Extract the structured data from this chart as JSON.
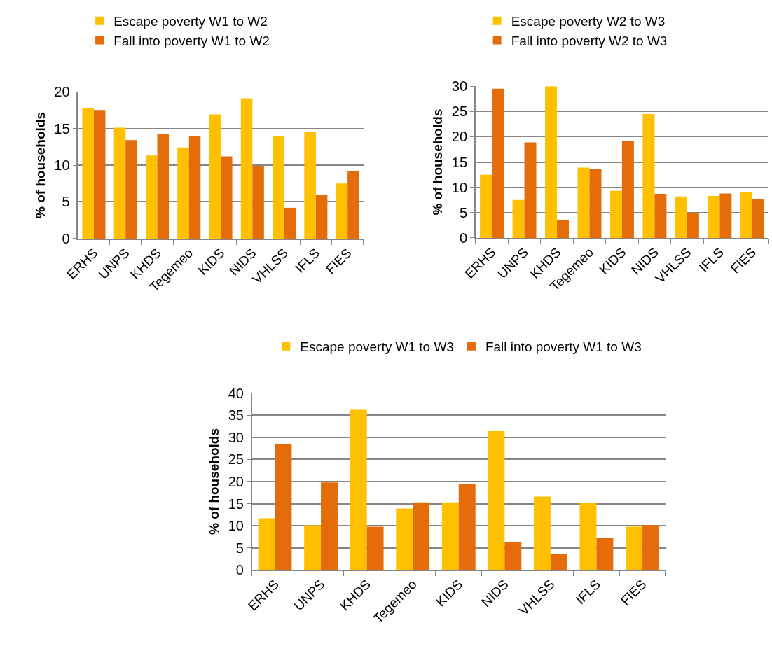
{
  "chart_data": [
    {
      "type": "bar",
      "ylabel": "% of households",
      "categories": [
        "ERHS",
        "UNPS",
        "KHDS",
        "Tegemeo",
        "KIDS",
        "NIDS",
        "VHLSS",
        "IFLS",
        "FIES"
      ],
      "ylim": [
        0,
        20
      ],
      "yticks": [
        0,
        5,
        10,
        15,
        20
      ],
      "grid": "y",
      "legend": "top left",
      "series": [
        {
          "name": "Escape poverty W1 to W2",
          "color": "#ffc000",
          "values": [
            17.8,
            15.1,
            11.3,
            12.4,
            16.9,
            19.1,
            13.9,
            14.5,
            7.5
          ]
        },
        {
          "name": "Fall into poverty W1 to W2",
          "color": "#e46c0a",
          "values": [
            17.5,
            13.4,
            14.2,
            14.0,
            11.2,
            9.9,
            4.2,
            6.0,
            9.2
          ]
        }
      ]
    },
    {
      "type": "bar",
      "ylabel": "% of households",
      "categories": [
        "ERHS",
        "UNPS",
        "KHDS",
        "Tegemeo",
        "KIDS",
        "NIDS",
        "VHLSS",
        "IFLS",
        "FIES"
      ],
      "ylim": [
        0,
        30
      ],
      "yticks": [
        0,
        5,
        10,
        15,
        20,
        25,
        30
      ],
      "grid": "y",
      "legend": "top left",
      "series": [
        {
          "name": "Escape poverty W2 to W3",
          "color": "#ffc000",
          "values": [
            12.5,
            7.5,
            30,
            13.9,
            9.3,
            24.5,
            8.2,
            8.3,
            9.0
          ]
        },
        {
          "name": "Fall into poverty W2 to W3",
          "color": "#e46c0a",
          "values": [
            29.5,
            18.9,
            3.5,
            13.7,
            19.1,
            8.7,
            5.0,
            8.8,
            7.7
          ]
        }
      ]
    },
    {
      "type": "bar",
      "ylabel": "% of households",
      "categories": [
        "ERHS",
        "UNPS",
        "KHDS",
        "Tegemeo",
        "KIDS",
        "NIDS",
        "VHLSS",
        "IFLS",
        "FIES"
      ],
      "ylim": [
        0,
        40
      ],
      "yticks": [
        0,
        5,
        10,
        15,
        20,
        25,
        30,
        35,
        40
      ],
      "grid": "y",
      "legend": "top",
      "series": [
        {
          "name": "Escape poverty W1 to W3",
          "color": "#ffc000",
          "values": [
            11.7,
            10.1,
            36.2,
            13.9,
            15.3,
            31.4,
            16.6,
            15.2,
            9.8
          ]
        },
        {
          "name": "Fall into poverty W1 to W3",
          "color": "#e46c0a",
          "values": [
            28.4,
            19.8,
            9.8,
            15.3,
            19.4,
            6.4,
            3.6,
            7.2,
            10.2
          ]
        }
      ]
    }
  ]
}
